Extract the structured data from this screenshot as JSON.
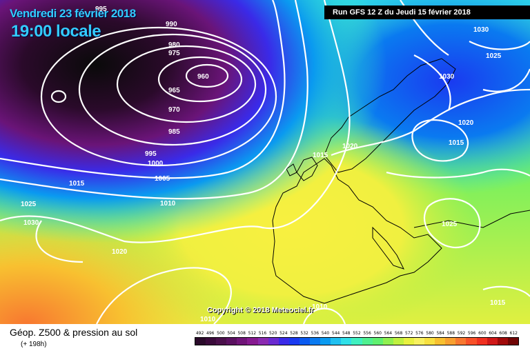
{
  "header": {
    "valid_date": "Vendredi 23 février 2018",
    "valid_time": "19:00 locale",
    "run_info": "Run GFS 12 Z du Jeudi 15 février 2018"
  },
  "copyright": "Copyright © 2018 Meteociel.fr",
  "footer": {
    "title": "Géop. Z500 & pression au sol",
    "forecast_hour": "(+ 198h)"
  },
  "scale": {
    "labels": [
      "492",
      "496",
      "500",
      "504",
      "508",
      "512",
      "516",
      "520",
      "524",
      "528",
      "532",
      "536",
      "540",
      "544",
      "548",
      "552",
      "556",
      "560",
      "564",
      "568",
      "572",
      "576",
      "580",
      "584",
      "588",
      "592",
      "596",
      "600",
      "604",
      "608",
      "612"
    ],
    "colors": [
      "#2a0a2a",
      "#3a0a3a",
      "#4a0f4a",
      "#5a1060",
      "#701478",
      "#861a90",
      "#8a2ab0",
      "#6a2ad0",
      "#3a2ae8",
      "#1a3af0",
      "#0a5af0",
      "#0a7af0",
      "#0a9af0",
      "#20c0f0",
      "#30e0e8",
      "#40f0c0",
      "#50f090",
      "#60f070",
      "#90f050",
      "#c0f040",
      "#e8f040",
      "#f8f060",
      "#f8e040",
      "#f8c030",
      "#f8a030",
      "#f87830",
      "#f85028",
      "#f03020",
      "#d01818",
      "#a00a0a",
      "#700505"
    ]
  },
  "isobar_labels": [
    "995",
    "990",
    "980",
    "975",
    "960",
    "965",
    "970",
    "985",
    "995",
    "1000",
    "1005",
    "1010",
    "1015",
    "1025",
    "1030",
    "1020",
    "1015",
    "1020",
    "1030",
    "1025",
    "1030",
    "1020",
    "1015",
    "1025",
    "1015",
    "1010",
    "1010"
  ]
}
